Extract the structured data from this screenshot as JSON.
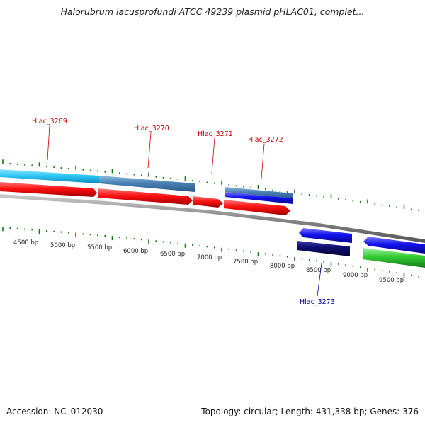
{
  "title": "Halorubrum lacusprofundi ATCC 49239 plasmid pHLAC01, complet...",
  "footer": {
    "accession": "Accession: NC_012030",
    "stats": "Topology: circular; Length: 431,338 bp; Genes: 376"
  },
  "colors": {
    "forward_cds": "#ff0000",
    "reverse_cds": "#1212ee",
    "forward_gene_light": "#2ec8f8",
    "forward_gene_steel": "#4a82b4",
    "reverse_gene_dark": "#0c0c6e",
    "green_feature": "#33cc33",
    "backbone": "#888888",
    "ticks": "#117711",
    "forward_label": "#cc0000",
    "reverse_label": "#000099"
  },
  "scale_labels": [
    "4500 bp",
    "5000 bp",
    "5500 bp",
    "6000 bp",
    "6500 bp",
    "7000 bp",
    "7500 bp",
    "8000 bp",
    "8500 bp",
    "9000 bp",
    "9500 bp"
  ],
  "gene_labels": [
    {
      "text": "Hlac_3269",
      "strand": "forward"
    },
    {
      "text": "Hlac_3270",
      "strand": "forward"
    },
    {
      "text": "Hlac_3271",
      "strand": "forward"
    },
    {
      "text": "Hlac_3272",
      "strand": "forward"
    },
    {
      "text": "Hlac_3273",
      "strand": "reverse"
    }
  ]
}
